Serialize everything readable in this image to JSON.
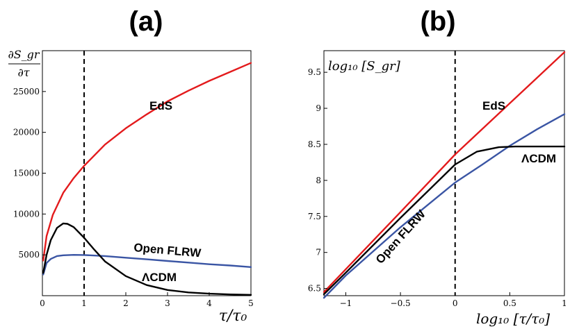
{
  "chart_data": [
    {
      "panel_label": "(a)",
      "type": "line",
      "xlabel": "τ/τ₀",
      "ylabel_top": "∂S_gr",
      "ylabel_bottom": "∂τ",
      "xlim": [
        0,
        5
      ],
      "ylim": [
        0,
        30000
      ],
      "xticks": [
        0,
        1,
        2,
        3,
        4,
        5
      ],
      "yticks": [
        5000,
        10000,
        15000,
        20000,
        25000
      ],
      "vline_x": 1,
      "colors": {
        "EdS": "#e31a1c",
        "Open FLRW": "#3a55a4",
        "ΛCDM": "#000000"
      },
      "series": [
        {
          "name": "EdS",
          "x": [
            0.02,
            0.1,
            0.25,
            0.5,
            0.75,
            1.0,
            1.5,
            2.0,
            2.5,
            3.0,
            3.5,
            4.0,
            4.5,
            5.0
          ],
          "values": [
            4300,
            7300,
            9900,
            12600,
            14400,
            15900,
            18500,
            20500,
            22200,
            23800,
            25100,
            26300,
            27400,
            28500
          ]
        },
        {
          "name": "Open FLRW",
          "x": [
            0.02,
            0.1,
            0.2,
            0.35,
            0.5,
            0.75,
            1.0,
            1.5,
            2.0,
            2.5,
            3.0,
            3.5,
            4.0,
            4.5,
            5.0
          ],
          "values": [
            2600,
            4000,
            4500,
            4850,
            4950,
            5000,
            4980,
            4850,
            4650,
            4450,
            4250,
            4050,
            3850,
            3700,
            3500
          ]
        },
        {
          "name": "ΛCDM",
          "x": [
            0.02,
            0.1,
            0.2,
            0.35,
            0.5,
            0.6,
            0.75,
            1.0,
            1.25,
            1.5,
            2.0,
            2.5,
            3.0,
            3.5,
            4.0,
            4.5,
            5.0
          ],
          "values": [
            2800,
            5000,
            6800,
            8300,
            8850,
            8800,
            8400,
            7100,
            5600,
            4200,
            2400,
            1300,
            700,
            400,
            250,
            150,
            100
          ]
        }
      ],
      "annotations": [
        "EdS",
        "Open FLRW",
        "ΛCDM"
      ]
    },
    {
      "panel_label": "(b)",
      "type": "line",
      "xlabel": "log₁₀ [τ/τ₀]",
      "ylabel": "log₁₀ [S_gr]",
      "xlim": [
        -1.2,
        1
      ],
      "ylim": [
        6.4,
        9.8
      ],
      "xticks": [
        -1,
        -0.5,
        0,
        0.5,
        1
      ],
      "yticks": [
        6.5,
        7,
        7.5,
        8,
        8.5,
        9,
        9.5
      ],
      "vline_x": 0,
      "colors": {
        "EdS": "#e31a1c",
        "Open FLRW": "#3a55a4",
        "ΛCDM": "#000000"
      },
      "series": [
        {
          "name": "EdS",
          "x": [
            -1.2,
            -0.5,
            0,
            0.5,
            1.0
          ],
          "values": [
            6.45,
            7.56,
            8.36,
            9.07,
            9.78
          ]
        },
        {
          "name": "Open FLRW",
          "x": [
            -1.2,
            -1.0,
            -0.5,
            0,
            0.25,
            0.5,
            0.75,
            1.0
          ],
          "values": [
            6.37,
            6.68,
            7.35,
            7.97,
            8.22,
            8.48,
            8.71,
            8.92
          ]
        },
        {
          "name": "ΛCDM",
          "x": [
            -1.2,
            -1.0,
            -0.5,
            0,
            0.2,
            0.4,
            0.55,
            0.7,
            1.0
          ],
          "values": [
            6.42,
            6.72,
            7.48,
            8.22,
            8.4,
            8.46,
            8.47,
            8.47,
            8.47
          ]
        }
      ],
      "annotations": [
        "EdS",
        "Open FLRW",
        "ΛCDM"
      ]
    }
  ]
}
